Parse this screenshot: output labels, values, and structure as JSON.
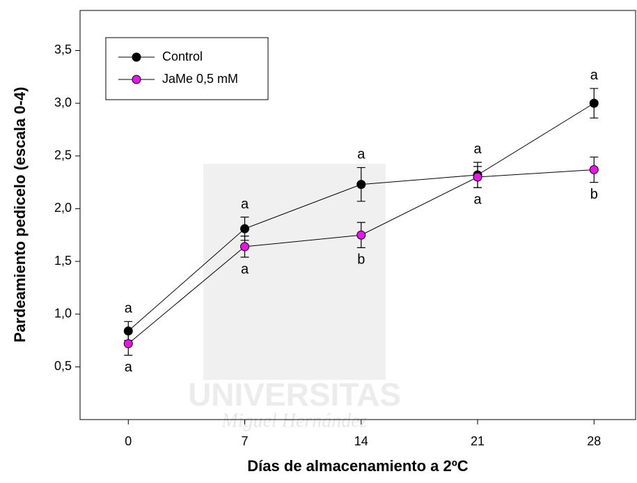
{
  "chart_data": {
    "type": "line",
    "xlabel": "Días de almacenamiento a 2ºC",
    "ylabel": "Pardeamiento pedicelo (escala 0-4)",
    "x": [
      0,
      7,
      14,
      21,
      28
    ],
    "series": [
      {
        "name": "Control",
        "color": "#000000",
        "values": [
          0.84,
          1.81,
          2.23,
          2.32,
          3.0
        ],
        "errors": [
          0.09,
          0.11,
          0.16,
          0.12,
          0.14
        ],
        "labels": [
          "a",
          "a",
          "a",
          "a",
          "a"
        ]
      },
      {
        "name": "JaMe 0,5 mM",
        "color": "#e815e8",
        "values": [
          0.72,
          1.64,
          1.75,
          2.3,
          2.37
        ],
        "errors": [
          0.11,
          0.1,
          0.12,
          0.1,
          0.12
        ],
        "labels": [
          "a",
          "a",
          "b",
          "a",
          "b"
        ]
      }
    ],
    "xlim": [
      -2.9,
      30.5
    ],
    "xticks": [
      0,
      7,
      14,
      21,
      28
    ],
    "ylim": [
      0,
      3.88
    ],
    "yticks": [
      {
        "value": 0.5,
        "label": "0,5"
      },
      {
        "value": 1.0,
        "label": "1,0"
      },
      {
        "value": 1.5,
        "label": "1,5"
      },
      {
        "value": 2.0,
        "label": "2,0"
      },
      {
        "value": 2.5,
        "label": "2,5"
      },
      {
        "value": 3.0,
        "label": "3,0"
      },
      {
        "value": 3.5,
        "label": "3,5"
      }
    ],
    "legend": "upper left",
    "watermark": [
      "UNIVERSITAS",
      "Miguel Hernández"
    ]
  }
}
